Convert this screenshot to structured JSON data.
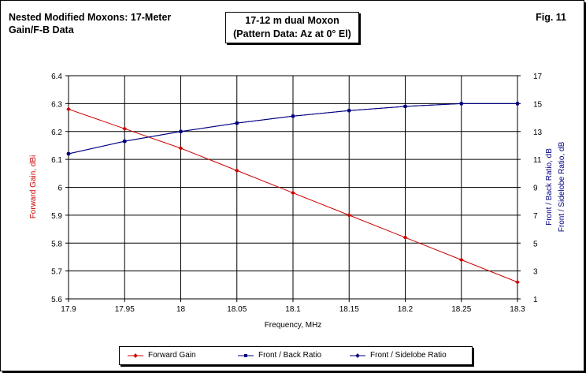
{
  "header": {
    "left_title_line1": "Nested Modified Moxons: 17-Meter",
    "left_title_line2": "Gain/F-B Data",
    "center_title_line1": "17-12 m dual Moxon",
    "center_title_line2": "(Pattern Data: Az at 0° El)",
    "fig_label": "Fig. 11"
  },
  "chart_data": {
    "type": "line",
    "x": [
      17.9,
      17.95,
      18.0,
      18.05,
      18.1,
      18.15,
      18.2,
      18.25,
      18.3
    ],
    "x_tick_labels": [
      "17.9",
      "17.95",
      "18",
      "18.05",
      "18.1",
      "18.15",
      "18.2",
      "18.25",
      "18.3"
    ],
    "xlabel": "Frequency, MHz",
    "xlim": [
      17.9,
      18.3
    ],
    "ylabel_left": "Forward Gain, dBi",
    "ylim_left": [
      5.6,
      6.4
    ],
    "y_left_tick_labels": [
      "5.6",
      "5.7",
      "5.8",
      "5.9",
      "6",
      "6.1",
      "6.2",
      "6.3",
      "6.4"
    ],
    "ylabel_right_line1": "Front / Back Ratio,  dB",
    "ylabel_right_line2": "Front / Sidelobe Ratio,  dB",
    "ylim_right": [
      1,
      17
    ],
    "y_right_tick_labels": [
      "1",
      "3",
      "5",
      "7",
      "9",
      "11",
      "13",
      "15",
      "17"
    ],
    "grid": true,
    "legend_placement": "bottom",
    "series": [
      {
        "name": "Forward Gain",
        "axis": "left",
        "color": "#cc0000",
        "marker": "diamond",
        "values": [
          6.28,
          6.21,
          6.14,
          6.06,
          5.98,
          5.9,
          5.82,
          5.74,
          5.66
        ]
      },
      {
        "name": "Front / Back Ratio",
        "axis": "right",
        "color": "#000080",
        "marker": "square",
        "values": [
          11.4,
          12.3,
          13.0,
          13.6,
          14.1,
          14.5,
          14.8,
          15.0,
          15.0
        ]
      },
      {
        "name": "Front / Sidelobe Ratio",
        "axis": "right",
        "color": "#000080",
        "marker": "diamond",
        "values": [
          11.4,
          12.3,
          13.0,
          13.6,
          14.1,
          14.5,
          14.8,
          15.0,
          15.0
        ]
      }
    ]
  }
}
